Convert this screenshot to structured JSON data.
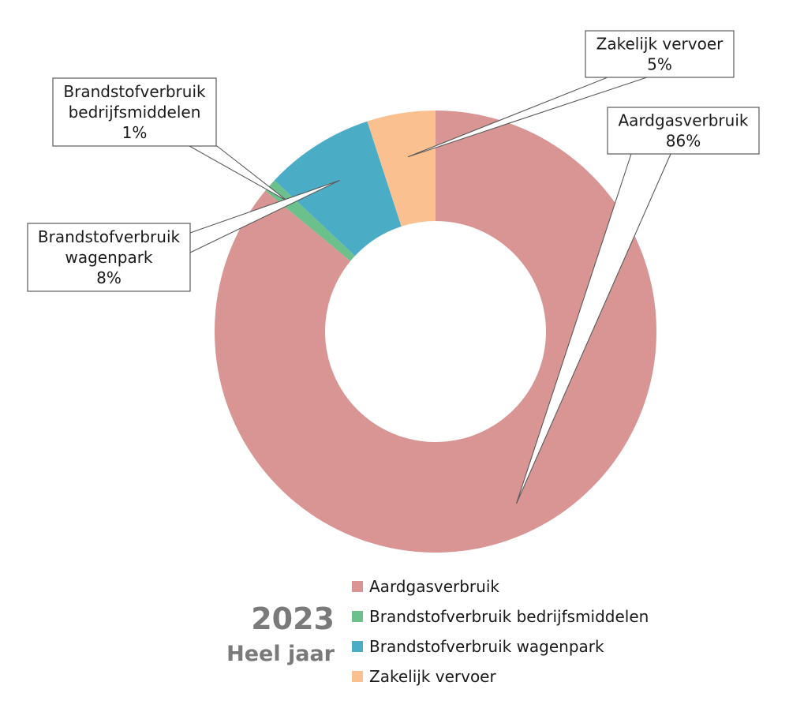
{
  "footer": {
    "year": "2023",
    "period": "Heel jaar"
  },
  "chart_data": {
    "type": "pie",
    "variant": "donut",
    "title": "",
    "slices": [
      {
        "label": "Aardgasverbruik",
        "value": 86,
        "color": "#d99594",
        "label_text": [
          "Aardgasverbruik",
          "86%"
        ]
      },
      {
        "label": "Brandstofverbruik bedrijfsmiddelen",
        "value": 1,
        "color": "#6cc08b",
        "label_text": [
          "Brandstofverbruik",
          "bedrijfsmiddelen",
          "1%"
        ]
      },
      {
        "label": "Brandstofverbruik wagenpark",
        "value": 8,
        "color": "#4bacc6",
        "label_text": [
          "Brandstofverbruik",
          "wagenpark",
          "8%"
        ]
      },
      {
        "label": "Zakelijk vervoer",
        "value": 5,
        "color": "#fac090",
        "label_text": [
          "Zakelijk  vervoer",
          "5%"
        ]
      }
    ],
    "legend": {
      "position": "bottom-right",
      "items": [
        "Aardgasverbruik",
        "Brandstofverbruik bedrijfsmiddelen",
        "Brandstofverbruik wagenpark",
        "Zakelijk  vervoer"
      ]
    }
  }
}
